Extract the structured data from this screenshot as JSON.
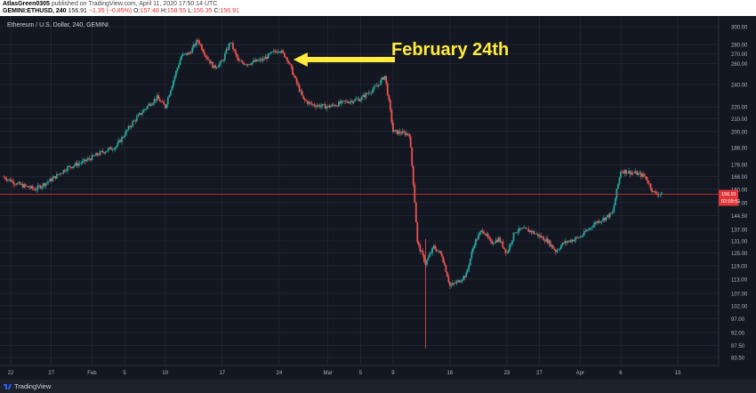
{
  "header": {
    "author": "AtlasGreen0305",
    "published": " published on TradingView.com, April 11, 2020 17:50:14 UTC",
    "symbol": "GEMINI:ETHUSD, 240",
    "last": "156.91",
    "change": "−1.35 (−0.85%)",
    "o_label": "O:",
    "o": "157.48",
    "h_label": "H:",
    "h": "158.55",
    "l_label": "L:",
    "l": "155.35",
    "c_label": "C:",
    "c": "156.91"
  },
  "chart_title": "Ethereum / U.S. Dollar, 240, GEMINI",
  "footer": {
    "brand": "TradingView"
  },
  "colors": {
    "up": "#26a69a",
    "down": "#ef5350",
    "bg": "#131722",
    "grid": "#2a2e39",
    "annotation": "#ffeb3b",
    "price_line": "#e0373b"
  },
  "chart_data": {
    "type": "candlestick",
    "title": "Ethereum / U.S. Dollar, 240, GEMINI",
    "x_ticks": [
      "22",
      "27",
      "Feb",
      "5",
      "10",
      "17",
      "24",
      "Mar",
      "5",
      "9",
      "16",
      "23",
      "27",
      "Apr",
      "6",
      "13"
    ],
    "y_ticks": [
      83.5,
      87.5,
      92.0,
      97.0,
      102.0,
      107.0,
      113.0,
      119.0,
      125.0,
      131.0,
      137.0,
      144.5,
      152.0,
      160.0,
      168.0,
      176.0,
      188.0,
      200.0,
      210.0,
      220.0,
      240.0,
      260.0,
      270.0,
      280.0,
      300.0
    ],
    "y_scale": "log",
    "ylim": [
      80,
      305
    ],
    "grid": true,
    "last_price": "156.91",
    "countdown": "02:09:51",
    "annotation": {
      "text": "February 24th",
      "date": "Feb 24"
    },
    "close_path": [
      [
        "Jan 21",
        168
      ],
      [
        "Jan 23",
        163
      ],
      [
        "Jan 25",
        160
      ],
      [
        "Jan 27",
        166
      ],
      [
        "Jan 29",
        174
      ],
      [
        "Jan 31",
        178
      ],
      [
        "Feb 2",
        184
      ],
      [
        "Feb 4",
        189
      ],
      [
        "Feb 6",
        207
      ],
      [
        "Feb 8",
        222
      ],
      [
        "Feb 9",
        228
      ],
      [
        "Feb 10",
        220
      ],
      [
        "Feb 12",
        268
      ],
      [
        "Feb 13",
        271
      ],
      [
        "Feb 14",
        285
      ],
      [
        "Feb 15",
        268
      ],
      [
        "Feb 16",
        256
      ],
      [
        "Feb 17",
        262
      ],
      [
        "Feb 18",
        283
      ],
      [
        "Feb 19",
        262
      ],
      [
        "Feb 20",
        260
      ],
      [
        "Feb 22",
        264
      ],
      [
        "Feb 23",
        270
      ],
      [
        "Feb 24",
        275
      ],
      [
        "Feb 25",
        265
      ],
      [
        "Feb 26",
        244
      ],
      [
        "Feb 27",
        226
      ],
      [
        "Feb 28",
        222
      ],
      [
        "Mar 1",
        220
      ],
      [
        "Mar 3",
        224
      ],
      [
        "Mar 5",
        227
      ],
      [
        "Mar 7",
        238
      ],
      [
        "Mar 8",
        248
      ],
      [
        "Mar 9",
        200
      ],
      [
        "Mar 11",
        198
      ],
      [
        "Mar 12",
        130
      ],
      [
        "Mar 13",
        120
      ],
      [
        "Mar 14",
        128
      ],
      [
        "Mar 15",
        124
      ],
      [
        "Mar 16",
        110
      ],
      [
        "Mar 17",
        112
      ],
      [
        "Mar 18",
        115
      ],
      [
        "Mar 19",
        130
      ],
      [
        "Mar 20",
        137
      ],
      [
        "Mar 21",
        130
      ],
      [
        "Mar 22",
        132
      ],
      [
        "Mar 23",
        125
      ],
      [
        "Mar 24",
        136
      ],
      [
        "Mar 25",
        137
      ],
      [
        "Mar 26",
        136
      ],
      [
        "Mar 28",
        131
      ],
      [
        "Mar 29",
        126
      ],
      [
        "Mar 30",
        130
      ],
      [
        "Apr 1",
        133
      ],
      [
        "Apr 2",
        137
      ],
      [
        "Apr 3",
        141
      ],
      [
        "Apr 4",
        143
      ],
      [
        "Apr 5",
        146
      ],
      [
        "Apr 6",
        172
      ],
      [
        "Apr 7",
        171
      ],
      [
        "Apr 8",
        170
      ],
      [
        "Apr 9",
        168
      ],
      [
        "Apr 10",
        158
      ],
      [
        "Apr 11",
        156.91
      ]
    ]
  }
}
